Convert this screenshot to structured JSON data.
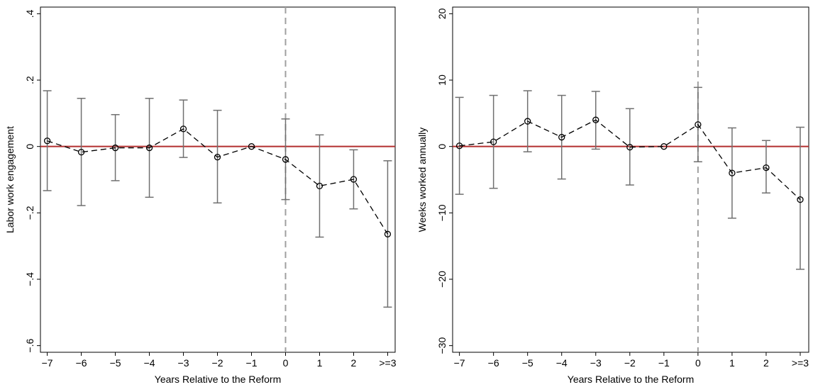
{
  "chart_data": [
    {
      "type": "line",
      "ylabel": "Labor work engagement",
      "xlabel": "Years Relative to the Reform",
      "x": [
        -7,
        -6,
        -5,
        -4,
        -3,
        -2,
        -1,
        0,
        1,
        2,
        3
      ],
      "values": [
        0.017,
        -0.017,
        -0.004,
        -0.004,
        0.053,
        -0.032,
        0,
        -0.039,
        -0.119,
        -0.099,
        -0.264
      ],
      "lower": [
        -0.133,
        -0.178,
        -0.103,
        -0.153,
        -0.033,
        -0.17,
        null,
        -0.16,
        -0.273,
        -0.188,
        -0.484
      ],
      "upper": [
        0.168,
        0.145,
        0.096,
        0.145,
        0.14,
        0.109,
        null,
        0.083,
        0.035,
        -0.01,
        -0.043
      ],
      "color": "#000000",
      "errorbar_color": "#707070",
      "hline": 0,
      "hline_color": "#b22f2f",
      "vline": 0,
      "vline_color": "#a0a0a0",
      "xlim": [
        -7.2,
        3.22
      ],
      "ylim": [
        -0.62,
        0.42
      ],
      "xticks": [
        {
          "value": -7,
          "label": "−7"
        },
        {
          "value": -6,
          "label": "−6"
        },
        {
          "value": -5,
          "label": "−5"
        },
        {
          "value": -4,
          "label": "−4"
        },
        {
          "value": -3,
          "label": "−3"
        },
        {
          "value": -2,
          "label": "−2"
        },
        {
          "value": -1,
          "label": "−1"
        },
        0,
        1,
        2,
        {
          "value": 3,
          "label": ">=3"
        }
      ],
      "yticks": [
        {
          "value": -0.6,
          "label": "−.6"
        },
        {
          "value": -0.4,
          "label": "−.4"
        },
        {
          "value": -0.2,
          "label": "−.2"
        },
        0,
        {
          "value": 0.2,
          "label": ".2"
        },
        {
          "value": 0.4,
          "label": ".4"
        }
      ]
    },
    {
      "type": "line",
      "ylabel": "Weeks worked annually",
      "xlabel": "Years Relative to the Reform",
      "x": [
        -7,
        -6,
        -5,
        -4,
        -3,
        -2,
        -1,
        0,
        1,
        2,
        3
      ],
      "values": [
        0.1,
        0.7,
        3.8,
        1.4,
        4.0,
        -0.1,
        0,
        3.3,
        -4.0,
        -3.2,
        -8.0
      ],
      "lower": [
        -7.2,
        -6.3,
        -0.8,
        -4.9,
        -0.4,
        -5.8,
        null,
        -2.3,
        -10.8,
        -7.0,
        -18.5
      ],
      "upper": [
        7.4,
        7.7,
        8.4,
        7.7,
        8.3,
        5.7,
        null,
        8.9,
        2.8,
        0.9,
        2.9
      ],
      "color": "#000000",
      "errorbar_color": "#707070",
      "hline": 0,
      "hline_color": "#b22f2f",
      "vline": 0,
      "vline_color": "#a0a0a0",
      "xlim": [
        -7.2,
        3.25
      ],
      "ylim": [
        -31,
        21
      ],
      "xticks": [
        {
          "value": -7,
          "label": "−7"
        },
        {
          "value": -6,
          "label": "−6"
        },
        {
          "value": -5,
          "label": "−5"
        },
        {
          "value": -4,
          "label": "−4"
        },
        {
          "value": -3,
          "label": "−3"
        },
        {
          "value": -2,
          "label": "−2"
        },
        {
          "value": -1,
          "label": "−1"
        },
        0,
        1,
        2,
        {
          "value": 3,
          "label": ">=3"
        }
      ],
      "yticks": [
        {
          "value": -30,
          "label": "−30"
        },
        {
          "value": -20,
          "label": "−20"
        },
        {
          "value": -10,
          "label": "−10"
        },
        0,
        10,
        20
      ]
    }
  ]
}
